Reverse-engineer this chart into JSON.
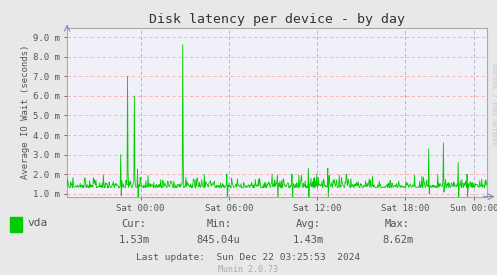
{
  "title": "Disk latency per device - by day",
  "ylabel": "Average IO Wait (seconds)",
  "background_color": "#e8e8e8",
  "plot_background": "#f0f0f8",
  "line_color": "#00cc00",
  "grid_h_color": "#ffaaaa",
  "grid_v_color": "#aaaacc",
  "ytick_labels": [
    "1.0 m",
    "2.0 m",
    "3.0 m",
    "4.0 m",
    "5.0 m",
    "6.0 m",
    "7.0 m",
    "8.0 m",
    "9.0 m"
  ],
  "ytick_values": [
    0.001,
    0.002,
    0.003,
    0.004,
    0.005,
    0.006,
    0.007,
    0.008,
    0.009
  ],
  "ylim": [
    0.00085,
    0.0095
  ],
  "xtick_labels": [
    "Sat 00:00",
    "Sat 06:00",
    "Sat 12:00",
    "Sat 18:00",
    "Sun 00:00"
  ],
  "xtick_positions": [
    0.175,
    0.385,
    0.595,
    0.805,
    0.97
  ],
  "legend_label": "vda",
  "legend_color": "#00cc00",
  "cur_label": "Cur:",
  "cur_value": "1.53m",
  "min_label": "Min:",
  "min_value": "845.04u",
  "avg_label": "Avg:",
  "avg_value": "1.43m",
  "max_label": "Max:",
  "max_value": "8.62m",
  "last_update": "Last update:  Sun Dec 22 03:25:53  2024",
  "munin_label": "Munin 2.0.73",
  "rrdtool_label": "RRDTOOL / TOBI OETIKER",
  "title_color": "#333333",
  "text_color": "#555555",
  "watermark_color": "#aaaaaa",
  "spine_color": "#aaaaaa"
}
